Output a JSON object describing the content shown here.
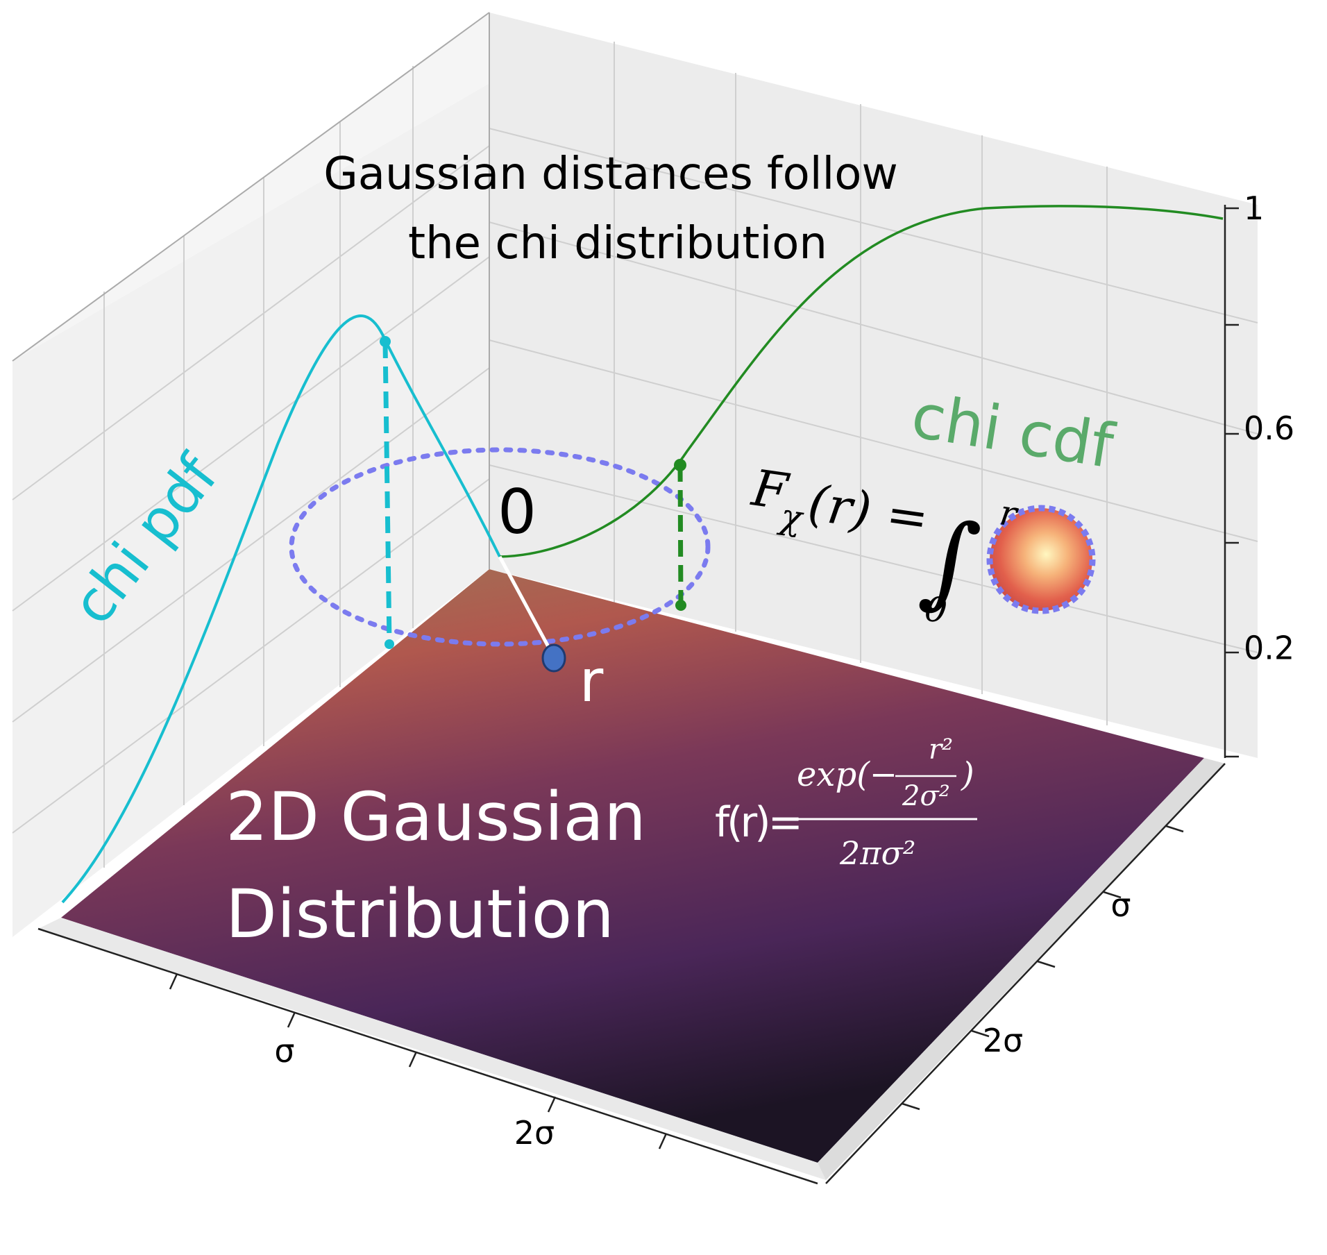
{
  "chart_data": {
    "type": "line",
    "title": "Gaussian distances follow the chi distribution",
    "title_lines": [
      "Gaussian distances follow",
      "the chi distribution"
    ],
    "surface_label_lines": [
      "2D Gaussian",
      "Distribution"
    ],
    "origin_label": "0",
    "point_label": "r",
    "x_tick_labels": [
      "σ",
      "2σ"
    ],
    "y_tick_labels": [
      "σ",
      "2σ"
    ],
    "z_ticks": [
      0.2,
      0.6,
      1
    ],
    "z_tick_labels": [
      "0.2",
      "0.6",
      "1"
    ],
    "zlim": [
      0,
      1
    ],
    "series": [
      {
        "name": "chi pdf",
        "color": "#17becf",
        "x": [
          0,
          0.25,
          0.5,
          0.75,
          1.0,
          1.25,
          1.5,
          1.75,
          2.0,
          2.5,
          3.0,
          3.5
        ],
        "values": [
          0,
          0.24,
          0.44,
          0.57,
          0.61,
          0.57,
          0.49,
          0.38,
          0.27,
          0.11,
          0.03,
          0.01
        ]
      },
      {
        "name": "chi cdf",
        "color": "#228b22",
        "x": [
          0,
          0.5,
          1.0,
          1.5,
          2.0,
          2.5,
          3.0,
          3.5
        ],
        "values": [
          0,
          0.12,
          0.39,
          0.68,
          0.86,
          0.96,
          0.99,
          1.0
        ]
      }
    ],
    "formulas": {
      "pdf_formula": {
        "lhs": "f(r)=",
        "num_prefix": "exp(−",
        "num_frac_top": "r²",
        "num_frac_bottom": "2σ²",
        "num_suffix": ")",
        "denominator": "2πσ²"
      },
      "cdf_formula": {
        "lhs": "F",
        "lhs_sub": "χ",
        "lhs_arg": "(r) =",
        "integral": "∫",
        "upper": "r",
        "lower": "0"
      }
    },
    "colors": {
      "pdf": "#17becf",
      "cdf": "#228b22",
      "cdf_label": "#5aaa6a",
      "circle": "#7b7bef",
      "point": "#4472c4"
    }
  }
}
